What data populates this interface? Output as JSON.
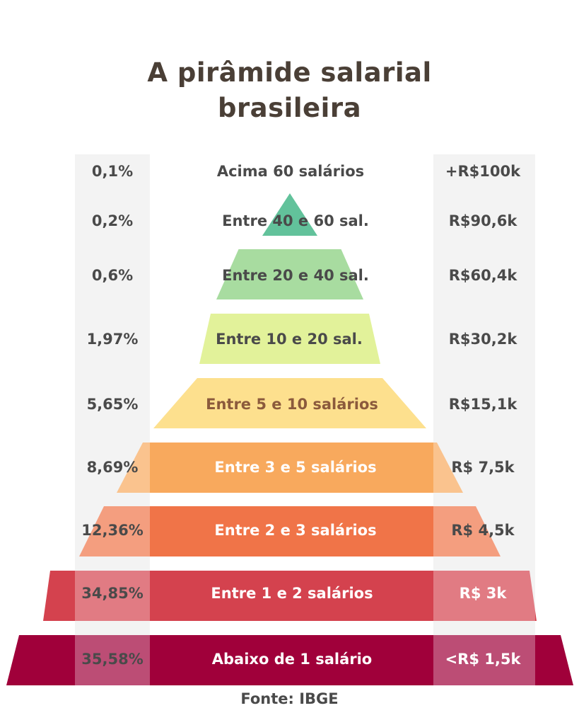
{
  "title": {
    "line1": "A pirâmide salarial",
    "line2": "brasileira"
  },
  "source": "Fonte: IBGE",
  "colors": {
    "title": "#4a3f36",
    "column_bg": "#eeeeee",
    "dark_text": "#4a4a4a",
    "light_text": "#ffffff"
  },
  "tiers": [
    {
      "label": "Acima 60 salários",
      "percent": "0,1%",
      "income": "+R$100k",
      "fill": "none",
      "label_color": "#4a4a4a"
    },
    {
      "label": "Entre 40 e 60 sal.",
      "percent": "0,2%",
      "income": "R$90,6k",
      "fill": "#62c29b",
      "label_color": "#4a4a4a"
    },
    {
      "label": "Entre 20 e 40 sal.",
      "percent": "0,6%",
      "income": "R$60,4k",
      "fill": "#a8dca0",
      "label_color": "#4a4a4a"
    },
    {
      "label": "Entre 10 e 20 sal.",
      "percent": "1,97%",
      "income": "R$30,2k",
      "fill": "#e2f29a",
      "label_color": "#4a4a4a"
    },
    {
      "label": "Entre 5 e 10 salários",
      "percent": "5,65%",
      "income": "R$15,1k",
      "fill": "#fde08e",
      "label_color": "#8b5a3c"
    },
    {
      "label": "Entre 3 e 5 salários",
      "percent": "8,69%",
      "income": "R$ 7,5k",
      "fill": "#f8a95d",
      "label_color": "#ffffff"
    },
    {
      "label": "Entre 2 e 3 salários",
      "percent": "12,36%",
      "income": "R$ 4,5k",
      "fill": "#f07448",
      "label_color": "#ffffff"
    },
    {
      "label": "Entre 1 e 2 salários",
      "percent": "34,85%",
      "income": "R$ 3k",
      "fill": "#d4424e",
      "label_color": "#ffffff"
    },
    {
      "label": "Abaixo de 1 salário",
      "percent": "35,58%",
      "income": "<R$ 1,5k",
      "fill": "#a0003a",
      "label_color": "#ffffff"
    }
  ]
}
